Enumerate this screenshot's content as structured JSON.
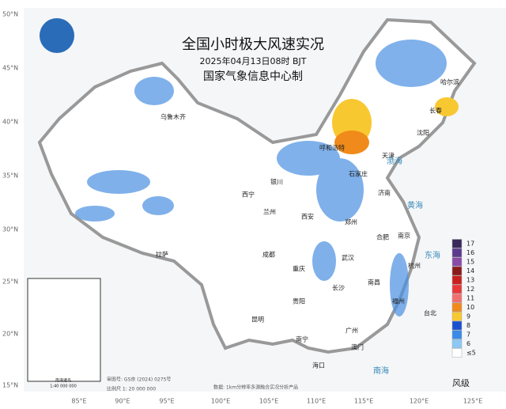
{
  "header": {
    "title": "全国小时极大风速实况",
    "time": "2025年04月13日08时 BJT",
    "org": "国家气象信息中心制"
  },
  "lat_labels": [
    "50°N",
    "45°N",
    "40°N",
    "35°N",
    "30°N",
    "25°N",
    "20°N",
    "15°N"
  ],
  "lon_labels": [
    "85°E",
    "90°E",
    "95°E",
    "100°E",
    "105°E",
    "110°E",
    "115°E",
    "120°E",
    "125°E"
  ],
  "cities": [
    "乌鲁木齐",
    "西宁",
    "兰州",
    "银川",
    "西安",
    "拉萨",
    "成都",
    "重庆",
    "贵阳",
    "昆明",
    "南宁",
    "海口",
    "广州",
    "澳门",
    "长沙",
    "南昌",
    "武汉",
    "郑州",
    "合肥",
    "南京",
    "济南",
    "石家庄",
    "呼和浩特",
    "天津",
    "沈阳",
    "长春",
    "哈尔滨",
    "福州",
    "台北",
    "杭州"
  ],
  "seas": [
    "渤海",
    "黄海",
    "东海",
    "南海"
  ],
  "legend": {
    "title": "风级",
    "items": [
      {
        "label": "17",
        "color": "#3a2a5c"
      },
      {
        "label": "16",
        "color": "#5b3a8c"
      },
      {
        "label": "15",
        "color": "#8a4aa8"
      },
      {
        "label": "14",
        "color": "#8b1a1a"
      },
      {
        "label": "13",
        "color": "#c8201e"
      },
      {
        "label": "12",
        "color": "#e8383a"
      },
      {
        "label": "11",
        "color": "#f07070"
      },
      {
        "label": "10",
        "color": "#f08a1a"
      },
      {
        "label": "9",
        "color": "#f8c830"
      },
      {
        "label": "8",
        "color": "#1a50d0"
      },
      {
        "label": "7",
        "color": "#3a8ae8"
      },
      {
        "label": "6",
        "color": "#8cc8f4"
      },
      {
        "label": "≤5",
        "color": "#ffffff"
      }
    ]
  },
  "inset": {
    "title": "南海诸岛",
    "scale": "1:40 000 000"
  },
  "footer": {
    "approval": "审图号: GS京 (2024) 0275号",
    "scale": "比例尺 1: 20 000 000",
    "source": "数据: 1km分辨率多源融合实况分析产品"
  }
}
